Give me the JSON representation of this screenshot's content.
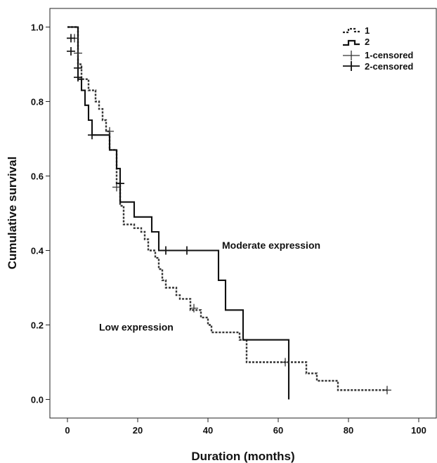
{
  "chart_data": {
    "type": "line",
    "title": "",
    "xlabel": "Duration (months)",
    "ylabel": "Cumulative survival",
    "xlim": [
      -5,
      105
    ],
    "ylim": [
      -0.05,
      1.05
    ],
    "x_ticks": [
      0,
      20,
      40,
      60,
      80,
      100
    ],
    "x_tick_labels": [
      "0",
      "20",
      "40",
      "60",
      "80",
      "100"
    ],
    "y_ticks": [
      0.0,
      0.2,
      0.4,
      0.6,
      0.8,
      1.0
    ],
    "y_tick_labels": [
      "0.0",
      "0.2",
      "0.4",
      "0.6",
      "0.8",
      "1.0"
    ],
    "grid": false,
    "legend_position": "top-right",
    "legend": [
      {
        "label": "1",
        "style": "dashed-step"
      },
      {
        "label": "2",
        "style": "solid-step"
      },
      {
        "label": "1-censored",
        "style": "cross"
      },
      {
        "label": "2-censored",
        "style": "cross"
      }
    ],
    "series": [
      {
        "name": "1",
        "line_style": "dashed",
        "steps": [
          [
            0,
            1.0
          ],
          [
            3,
            0.9
          ],
          [
            4,
            0.86
          ],
          [
            6,
            0.83
          ],
          [
            8,
            0.8
          ],
          [
            9,
            0.78
          ],
          [
            10,
            0.75
          ],
          [
            11,
            0.72
          ],
          [
            12,
            0.67
          ],
          [
            14,
            0.58
          ],
          [
            15,
            0.52
          ],
          [
            16,
            0.47
          ],
          [
            19,
            0.46
          ],
          [
            21,
            0.45
          ],
          [
            22,
            0.43
          ],
          [
            23,
            0.4
          ],
          [
            25,
            0.38
          ],
          [
            26,
            0.35
          ],
          [
            27,
            0.32
          ],
          [
            28,
            0.3
          ],
          [
            31,
            0.28
          ],
          [
            32,
            0.27
          ],
          [
            35,
            0.24
          ],
          [
            38,
            0.22
          ],
          [
            40,
            0.2
          ],
          [
            41,
            0.18
          ],
          [
            49,
            0.16
          ],
          [
            51,
            0.1
          ],
          [
            63,
            0.1
          ],
          [
            68,
            0.07
          ],
          [
            71,
            0.05
          ],
          [
            77,
            0.025
          ],
          [
            91,
            0.025
          ]
        ],
        "censored": [
          [
            2,
            0.97
          ],
          [
            3,
            0.93
          ],
          [
            12,
            0.72
          ],
          [
            14,
            0.57
          ],
          [
            36,
            0.245
          ],
          [
            62,
            0.1
          ],
          [
            91,
            0.025
          ]
        ]
      },
      {
        "name": "2",
        "line_style": "solid",
        "steps": [
          [
            0,
            1.0
          ],
          [
            3,
            0.86
          ],
          [
            4,
            0.83
          ],
          [
            5,
            0.79
          ],
          [
            6,
            0.75
          ],
          [
            7,
            0.71
          ],
          [
            12,
            0.67
          ],
          [
            14,
            0.62
          ],
          [
            15,
            0.53
          ],
          [
            19,
            0.49
          ],
          [
            24,
            0.45
          ],
          [
            26,
            0.4
          ],
          [
            43,
            0.32
          ],
          [
            45,
            0.24
          ],
          [
            50,
            0.16
          ],
          [
            63,
            0.0
          ]
        ],
        "censored": [
          [
            1,
            0.97
          ],
          [
            1,
            0.935
          ],
          [
            3,
            0.89
          ],
          [
            3,
            0.865
          ],
          [
            7,
            0.71
          ],
          [
            15,
            0.58
          ],
          [
            28,
            0.4
          ],
          [
            34,
            0.4
          ]
        ]
      }
    ],
    "annotations": [
      {
        "text": "Moderate expression",
        "x": 44,
        "y": 0.405
      },
      {
        "text": "Low expression",
        "x": 9,
        "y": 0.185
      }
    ]
  }
}
